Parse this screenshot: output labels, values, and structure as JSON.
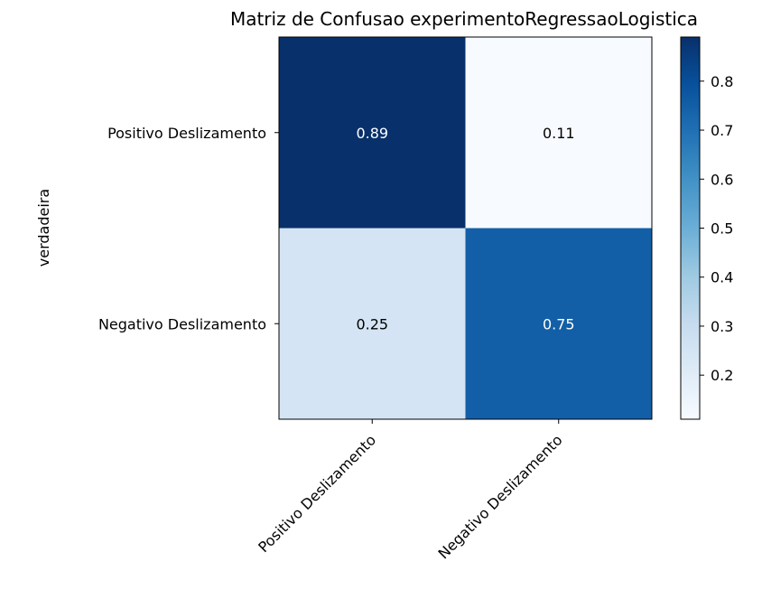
{
  "chart_data": {
    "type": "heatmap",
    "title": "Matriz de Confusao experimentoRegressaoLogistica",
    "ylabel": "verdadeira",
    "xlabel": "",
    "row_labels": [
      "Positivo Deslizamento",
      "Negativo Deslizamento"
    ],
    "col_labels": [
      "Positivo Deslizamento",
      "Negativo Deslizamento"
    ],
    "values": [
      [
        0.89,
        0.11
      ],
      [
        0.25,
        0.75
      ]
    ],
    "value_labels": [
      [
        "0.89",
        "0.11"
      ],
      [
        "0.25",
        "0.75"
      ]
    ],
    "colormap": "Blues",
    "colorbar": {
      "range": [
        0.11,
        0.89
      ],
      "ticks": [
        0.2,
        0.3,
        0.4,
        0.5,
        0.6,
        0.7,
        0.8
      ],
      "tick_labels": [
        "0.2",
        "0.3",
        "0.4",
        "0.5",
        "0.6",
        "0.7",
        "0.8"
      ]
    }
  }
}
